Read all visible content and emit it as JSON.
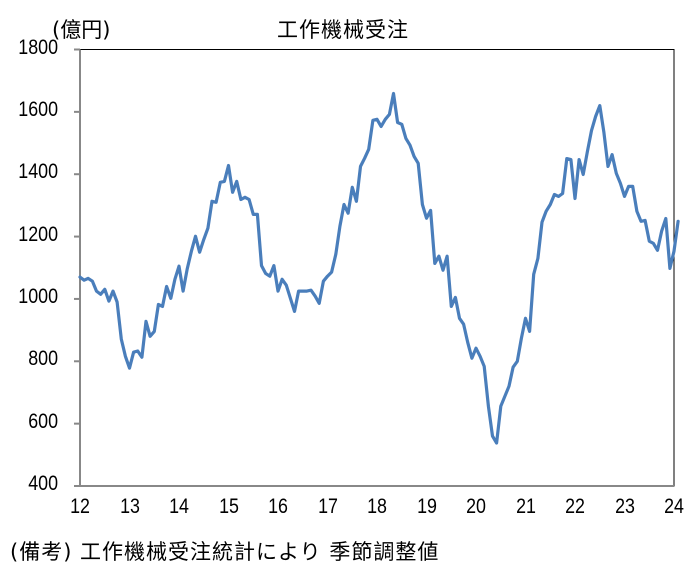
{
  "title": "工作機械受注",
  "unit_label": "(億円)",
  "note": "(備考) 工作機械受注統計により 季節調整値",
  "colors": {
    "line": "#4a7ebb",
    "axis": "#888888",
    "frame": "#000000"
  },
  "y_ticks": [
    "1800",
    "1600",
    "1400",
    "1200",
    "1000",
    "800",
    "600",
    "400"
  ],
  "x_ticks": [
    "12",
    "13",
    "14",
    "15",
    "16",
    "17",
    "18",
    "19",
    "20",
    "21",
    "22",
    "23",
    "24"
  ],
  "chart_data": {
    "type": "line",
    "title": "工作機械受注",
    "xlabel": "",
    "ylabel": "(億円)",
    "ylim": [
      400,
      1800
    ],
    "xlim": [
      12,
      24
    ],
    "x_tick_labels": [
      "12",
      "13",
      "14",
      "15",
      "16",
      "17",
      "18",
      "19",
      "20",
      "21",
      "22",
      "23",
      "24"
    ],
    "y_tick_labels": [
      400,
      600,
      800,
      1000,
      1200,
      1400,
      1600,
      1800
    ],
    "grid": false,
    "legend": null,
    "annotation": "(備考) 工作機械受注統計により 季節調整値",
    "x_start_year": 12,
    "x_step_months": 1,
    "series": [
      {
        "name": "工作機械受注 (季節調整値)",
        "color": "#4a7ebb",
        "values": [
          1070,
          1060,
          1066,
          1057,
          1025,
          1015,
          1031,
          993,
          1025,
          990,
          871,
          816,
          778,
          829,
          833,
          813,
          928,
          880,
          896,
          982,
          976,
          1040,
          1002,
          1063,
          1105,
          1025,
          1096,
          1153,
          1201,
          1150,
          1191,
          1227,
          1313,
          1310,
          1374,
          1377,
          1428,
          1342,
          1377,
          1319,
          1326,
          1319,
          1271,
          1271,
          1107,
          1082,
          1073,
          1107,
          1025,
          1063,
          1044,
          1002,
          960,
          1025,
          1025,
          1025,
          1028,
          1009,
          986,
          1057,
          1073,
          1086,
          1143,
          1233,
          1303,
          1275,
          1358,
          1313,
          1425,
          1451,
          1480,
          1573,
          1576,
          1553,
          1576,
          1592,
          1659,
          1566,
          1560,
          1515,
          1493,
          1457,
          1435,
          1303,
          1259,
          1284,
          1114,
          1137,
          1092,
          1137,
          976,
          1005,
          938,
          919,
          861,
          810,
          842,
          816,
          784,
          656,
          560,
          538,
          656,
          688,
          720,
          781,
          800,
          874,
          938,
          896,
          1079,
          1130,
          1246,
          1281,
          1303,
          1335,
          1329,
          1338,
          1450,
          1447,
          1322,
          1447,
          1399,
          1473,
          1540,
          1585,
          1620,
          1534,
          1425,
          1463,
          1403,
          1371,
          1329,
          1361,
          1361,
          1281,
          1249,
          1252,
          1185,
          1178,
          1156,
          1217,
          1258,
          1098,
          1153,
          1249
        ]
      }
    ]
  }
}
